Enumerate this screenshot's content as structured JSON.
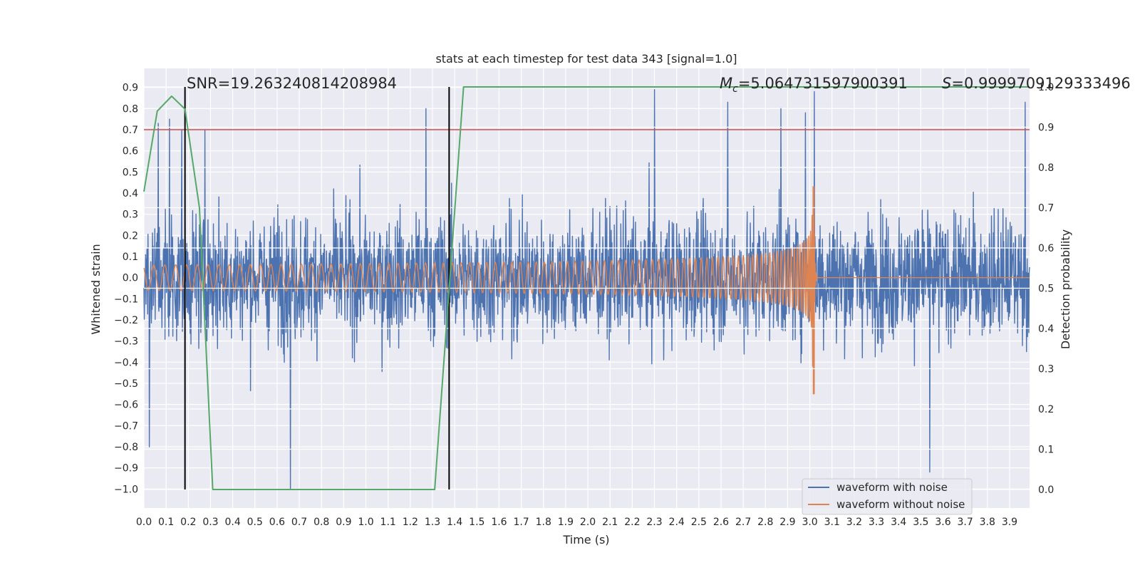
{
  "chart_data": {
    "type": "line",
    "title": "stats at each timestep for test data 343 [signal=1.0]",
    "xlabel": "Time (s)",
    "ylabel": "Whitened strain",
    "ylabel_right": "Detection probability",
    "xlim": [
      0.0,
      3.99
    ],
    "ylim": [
      -1.09,
      0.99
    ],
    "ylim_right": [
      -0.046,
      1.046
    ],
    "grid": true,
    "x_ticks": [
      "0.0",
      "0.1",
      "0.2",
      "0.3",
      "0.4",
      "0.5",
      "0.6",
      "0.7",
      "0.8",
      "0.9",
      "1.0",
      "1.1",
      "1.2",
      "1.3",
      "1.4",
      "1.5",
      "1.6",
      "1.7",
      "1.8",
      "1.9",
      "2.0",
      "2.1",
      "2.2",
      "2.3",
      "2.4",
      "2.5",
      "2.6",
      "2.7",
      "2.8",
      "2.9",
      "3.0",
      "3.1",
      "3.2",
      "3.3",
      "3.4",
      "3.5",
      "3.6",
      "3.7",
      "3.8",
      "3.9"
    ],
    "y_ticks": [
      "0.9",
      "0.8",
      "0.7",
      "0.6",
      "0.5",
      "0.4",
      "0.3",
      "0.2",
      "0.1",
      "0.0",
      "−0.1",
      "−0.2",
      "−0.3",
      "−0.4",
      "−0.5",
      "−0.6",
      "−0.7",
      "−0.8",
      "−0.9",
      "−1.0"
    ],
    "y_ticks_right": [
      "1.0",
      "0.9",
      "0.8",
      "0.7",
      "0.6",
      "0.5",
      "0.4",
      "0.3",
      "0.2",
      "0.1",
      "0.0"
    ],
    "annotations": {
      "snr": "SNR=19.263240814208984",
      "mc_symbol": "M",
      "mc_sub": "c",
      "mc_value": "=5.064731597900391",
      "s_symbol": "S",
      "s_value": "=0.9999709129333496"
    },
    "threshold_line": {
      "y": 0.7,
      "color": "#c44e52"
    },
    "vertical_markers": [
      0.185,
      1.375
    ],
    "detection_probability": {
      "name": "detection probability",
      "color": "#55a868",
      "x": [
        0.0,
        0.06,
        0.125,
        0.185,
        0.25,
        0.31,
        0.5,
        1.0,
        1.31,
        1.375,
        1.44,
        2.0,
        3.0,
        3.99
      ],
      "values": [
        0.74,
        0.94,
        0.977,
        0.945,
        0.7,
        0.0,
        0.0,
        0.0,
        0.0,
        0.5,
        1.0,
        1.0,
        1.0,
        1.0
      ]
    },
    "series": [
      {
        "name": "waveform with noise",
        "color": "#4c72b0"
      },
      {
        "name": "waveform without noise",
        "color": "#dd8452"
      }
    ],
    "noisy_peaks": {
      "x": [
        0.025,
        0.065,
        0.115,
        0.17,
        0.275,
        0.66,
        1.27,
        2.3,
        2.63,
        2.87,
        2.98,
        3.02,
        3.54,
        3.97
      ],
      "values": [
        -0.8,
        0.73,
        0.75,
        0.7,
        0.7,
        -1.0,
        0.8,
        0.89,
        0.83,
        0.8,
        0.78,
        0.88,
        -0.92,
        0.83
      ]
    },
    "clean_signal": {
      "amplitude_start": 0.06,
      "merger_time": 3.02,
      "merger_peak_max": 0.43,
      "merger_peak_min": -0.55,
      "start_frequency_hz": 20
    },
    "legend": {
      "placement": "lower-right"
    }
  }
}
